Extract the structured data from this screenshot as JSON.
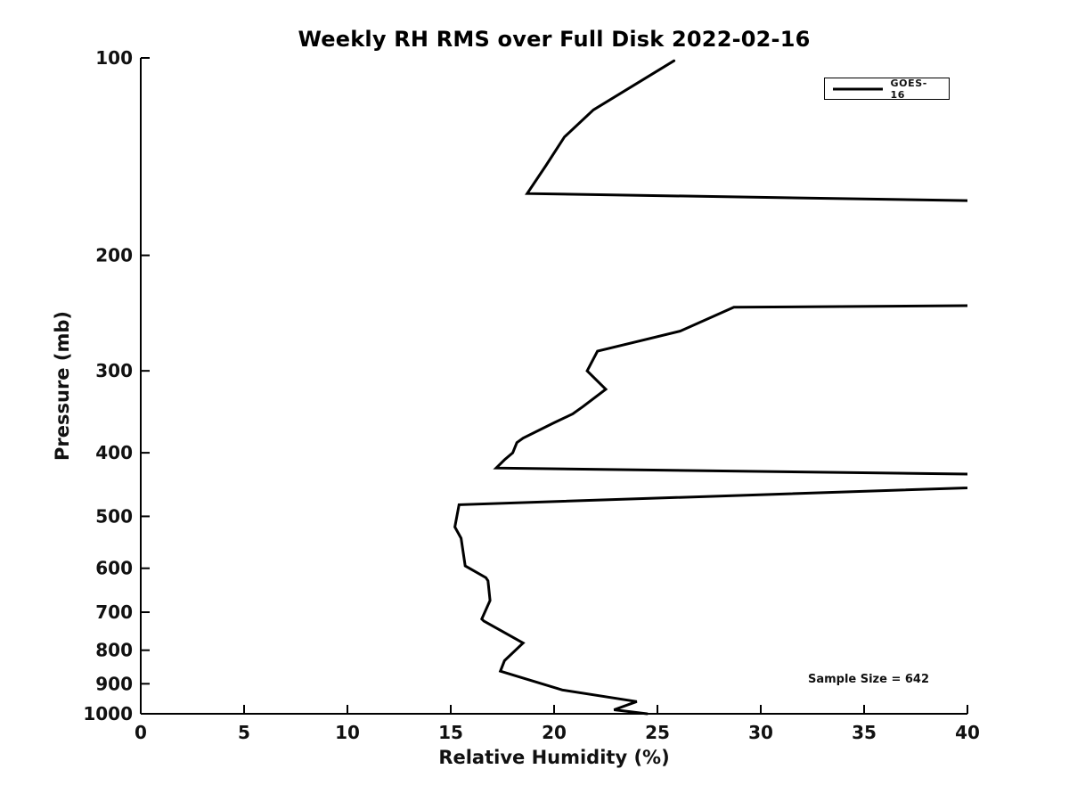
{
  "figure": {
    "background": "#ffffff"
  },
  "chart_data": {
    "type": "line",
    "title": "Weekly RH RMS over Full Disk 2022-02-16",
    "xlabel": "Relative Humidity (%)",
    "ylabel": "Pressure (mb)",
    "xlim": [
      0,
      40
    ],
    "xticks": [
      0,
      5,
      10,
      15,
      20,
      25,
      30,
      35,
      40
    ],
    "yscale": "log",
    "y_inverted": true,
    "ylim": [
      100,
      1000
    ],
    "yticks": [
      100,
      200,
      300,
      400,
      500,
      600,
      700,
      800,
      900,
      1000
    ],
    "grid": false,
    "line_color": "#000000",
    "legend": {
      "position": "upper right",
      "entries": [
        "GOES-16"
      ]
    },
    "annotation": "Sample Size = 642",
    "series": [
      {
        "name": "GOES-16",
        "clip_note": "points are [RH_percent, pressure_mb]; RH=45 marks off-scale (>40) values clipped at right axis edge",
        "points": [
          [
            25.8,
            101
          ],
          [
            21.9,
            120
          ],
          [
            20.5,
            132
          ],
          [
            19.6,
            146
          ],
          [
            18.7,
            161
          ],
          [
            45,
            166
          ],
          [
            45,
            238
          ],
          [
            28.7,
            240
          ],
          [
            26.1,
            261
          ],
          [
            22.1,
            280
          ],
          [
            21.6,
            300
          ],
          [
            22.5,
            320
          ],
          [
            21.4,
            340
          ],
          [
            20.9,
            349
          ],
          [
            20.0,
            360
          ],
          [
            18.5,
            380
          ],
          [
            18.2,
            386
          ],
          [
            18.0,
            400
          ],
          [
            17.6,
            410
          ],
          [
            17.2,
            422
          ],
          [
            45,
            433
          ],
          [
            45,
            447
          ],
          [
            15.4,
            480
          ],
          [
            15.2,
            519
          ],
          [
            15.5,
            540
          ],
          [
            15.7,
            595
          ],
          [
            16.7,
            620
          ],
          [
            16.8,
            627
          ],
          [
            16.9,
            672
          ],
          [
            16.5,
            717
          ],
          [
            16.6,
            722
          ],
          [
            17.4,
            746
          ],
          [
            18.5,
            780
          ],
          [
            17.6,
            830
          ],
          [
            17.4,
            861
          ],
          [
            20.4,
            920
          ],
          [
            24.0,
            958
          ],
          [
            22.9,
            986
          ],
          [
            24.5,
            1000
          ]
        ]
      }
    ]
  }
}
